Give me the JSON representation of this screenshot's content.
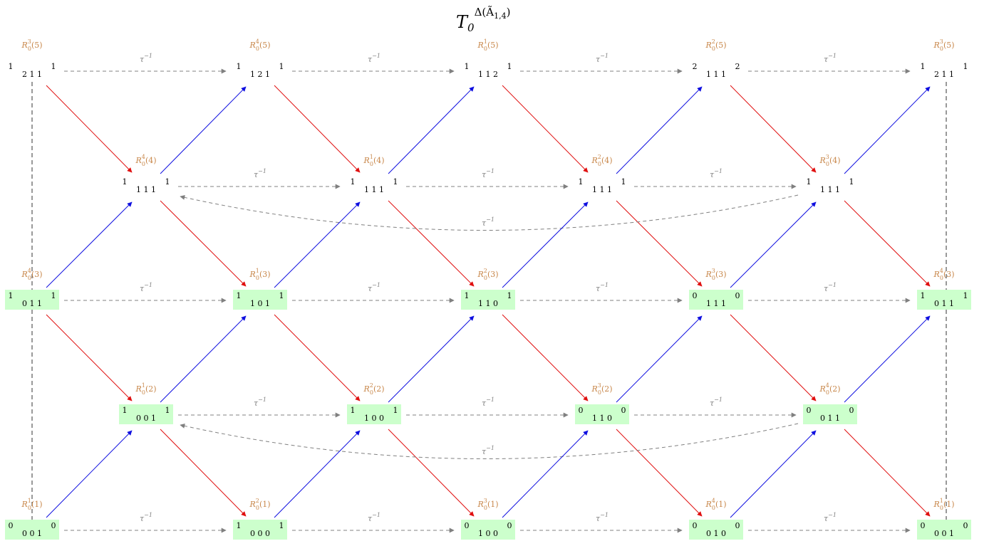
{
  "title": {
    "base": "T",
    "sub": "0",
    "sup": "Δ(Ã",
    "sup_sub": "1,4",
    "sup_close": ")"
  },
  "tau_label": {
    "base": "τ",
    "sup": "−1"
  },
  "rows": [
    [
      {
        "name": {
          "base": "R",
          "sub": "0",
          "sup": "3",
          "arg": "(5)"
        },
        "left": "1",
        "middle": "2 1 1",
        "right": "1",
        "highlight": false
      },
      {
        "name": {
          "base": "R",
          "sub": "0",
          "sup": "4",
          "arg": "(5)"
        },
        "left": "1",
        "middle": "1 2 1",
        "right": "1",
        "highlight": false
      },
      {
        "name": {
          "base": "R",
          "sub": "0",
          "sup": "1",
          "arg": "(5)"
        },
        "left": "1",
        "middle": "1 1 2",
        "right": "1",
        "highlight": false
      },
      {
        "name": {
          "base": "R",
          "sub": "0",
          "sup": "2",
          "arg": "(5)"
        },
        "left": "2",
        "middle": "1 1 1",
        "right": "2",
        "highlight": false
      },
      {
        "name": {
          "base": "R",
          "sub": "0",
          "sup": "3",
          "arg": "(5)"
        },
        "left": "1",
        "middle": "2 1 1",
        "right": "1",
        "highlight": false
      }
    ],
    [
      {
        "name": {
          "base": "R",
          "sub": "0",
          "sup": "4",
          "arg": "(4)"
        },
        "left": "1",
        "middle": "1 1 1",
        "right": "1",
        "highlight": false
      },
      {
        "name": {
          "base": "R",
          "sub": "0",
          "sup": "1",
          "arg": "(4)"
        },
        "left": "1",
        "middle": "1 1 1",
        "right": "1",
        "highlight": false
      },
      {
        "name": {
          "base": "R",
          "sub": "0",
          "sup": "2",
          "arg": "(4)"
        },
        "left": "1",
        "middle": "1 1 1",
        "right": "1",
        "highlight": false
      },
      {
        "name": {
          "base": "R",
          "sub": "0",
          "sup": "3",
          "arg": "(4)"
        },
        "left": "1",
        "middle": "1 1 1",
        "right": "1",
        "highlight": false
      }
    ],
    [
      {
        "name": {
          "base": "R",
          "sub": "0",
          "sup": "4",
          "arg": "(3)"
        },
        "left": "1",
        "middle": "0 1 1",
        "right": "1",
        "highlight": true
      },
      {
        "name": {
          "base": "R",
          "sub": "0",
          "sup": "1",
          "arg": "(3)"
        },
        "left": "1",
        "middle": "1 0 1",
        "right": "1",
        "highlight": true
      },
      {
        "name": {
          "base": "R",
          "sub": "0",
          "sup": "2",
          "arg": "(3)"
        },
        "left": "1",
        "middle": "1 1 0",
        "right": "1",
        "highlight": true
      },
      {
        "name": {
          "base": "R",
          "sub": "0",
          "sup": "3",
          "arg": "(3)"
        },
        "left": "0",
        "middle": "1 1 1",
        "right": "0",
        "highlight": true
      },
      {
        "name": {
          "base": "R",
          "sub": "0",
          "sup": "4",
          "arg": "(3)"
        },
        "left": "1",
        "middle": "0 1 1",
        "right": "1",
        "highlight": true
      }
    ],
    [
      {
        "name": {
          "base": "R",
          "sub": "0",
          "sup": "1",
          "arg": "(2)"
        },
        "left": "1",
        "middle": "0 0 1",
        "right": "1",
        "highlight": true
      },
      {
        "name": {
          "base": "R",
          "sub": "0",
          "sup": "2",
          "arg": "(2)"
        },
        "left": "1",
        "middle": "1 0 0",
        "right": "1",
        "highlight": true
      },
      {
        "name": {
          "base": "R",
          "sub": "0",
          "sup": "3",
          "arg": "(2)"
        },
        "left": "0",
        "middle": "1 1 0",
        "right": "0",
        "highlight": true
      },
      {
        "name": {
          "base": "R",
          "sub": "0",
          "sup": "4",
          "arg": "(2)"
        },
        "left": "0",
        "middle": "0 1 1",
        "right": "0",
        "highlight": true
      }
    ],
    [
      {
        "name": {
          "base": "R",
          "sub": "0",
          "sup": "1",
          "arg": "(1)"
        },
        "left": "0",
        "middle": "0 0 1",
        "right": "0",
        "highlight": true
      },
      {
        "name": {
          "base": "R",
          "sub": "0",
          "sup": "2",
          "arg": "(1)"
        },
        "left": "1",
        "middle": "0 0 0",
        "right": "1",
        "highlight": true
      },
      {
        "name": {
          "base": "R",
          "sub": "0",
          "sup": "3",
          "arg": "(1)"
        },
        "left": "0",
        "middle": "1 0 0",
        "right": "0",
        "highlight": true
      },
      {
        "name": {
          "base": "R",
          "sub": "0",
          "sup": "4",
          "arg": "(1)"
        },
        "left": "0",
        "middle": "0 1 0",
        "right": "0",
        "highlight": true
      },
      {
        "name": {
          "base": "R",
          "sub": "0",
          "sup": "1",
          "arg": "(1)"
        },
        "left": "0",
        "middle": "0 0 1",
        "right": "0",
        "highlight": true
      }
    ]
  ]
}
